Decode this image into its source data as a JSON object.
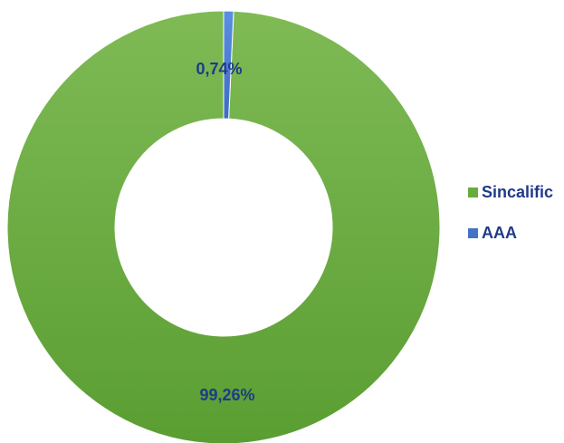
{
  "chart_data": {
    "type": "pie",
    "variant": "doughnut",
    "categories": [
      "Sincalific",
      "AAA"
    ],
    "values": [
      99.26,
      0.74
    ],
    "data_labels": [
      "99,26%",
      "0,74%"
    ],
    "colors": [
      "#6aab3d",
      "#4472c4"
    ],
    "label_color": "#1f3a8a",
    "legend": {
      "position": "right",
      "entries": [
        "Sincalific",
        "AAA"
      ]
    }
  }
}
